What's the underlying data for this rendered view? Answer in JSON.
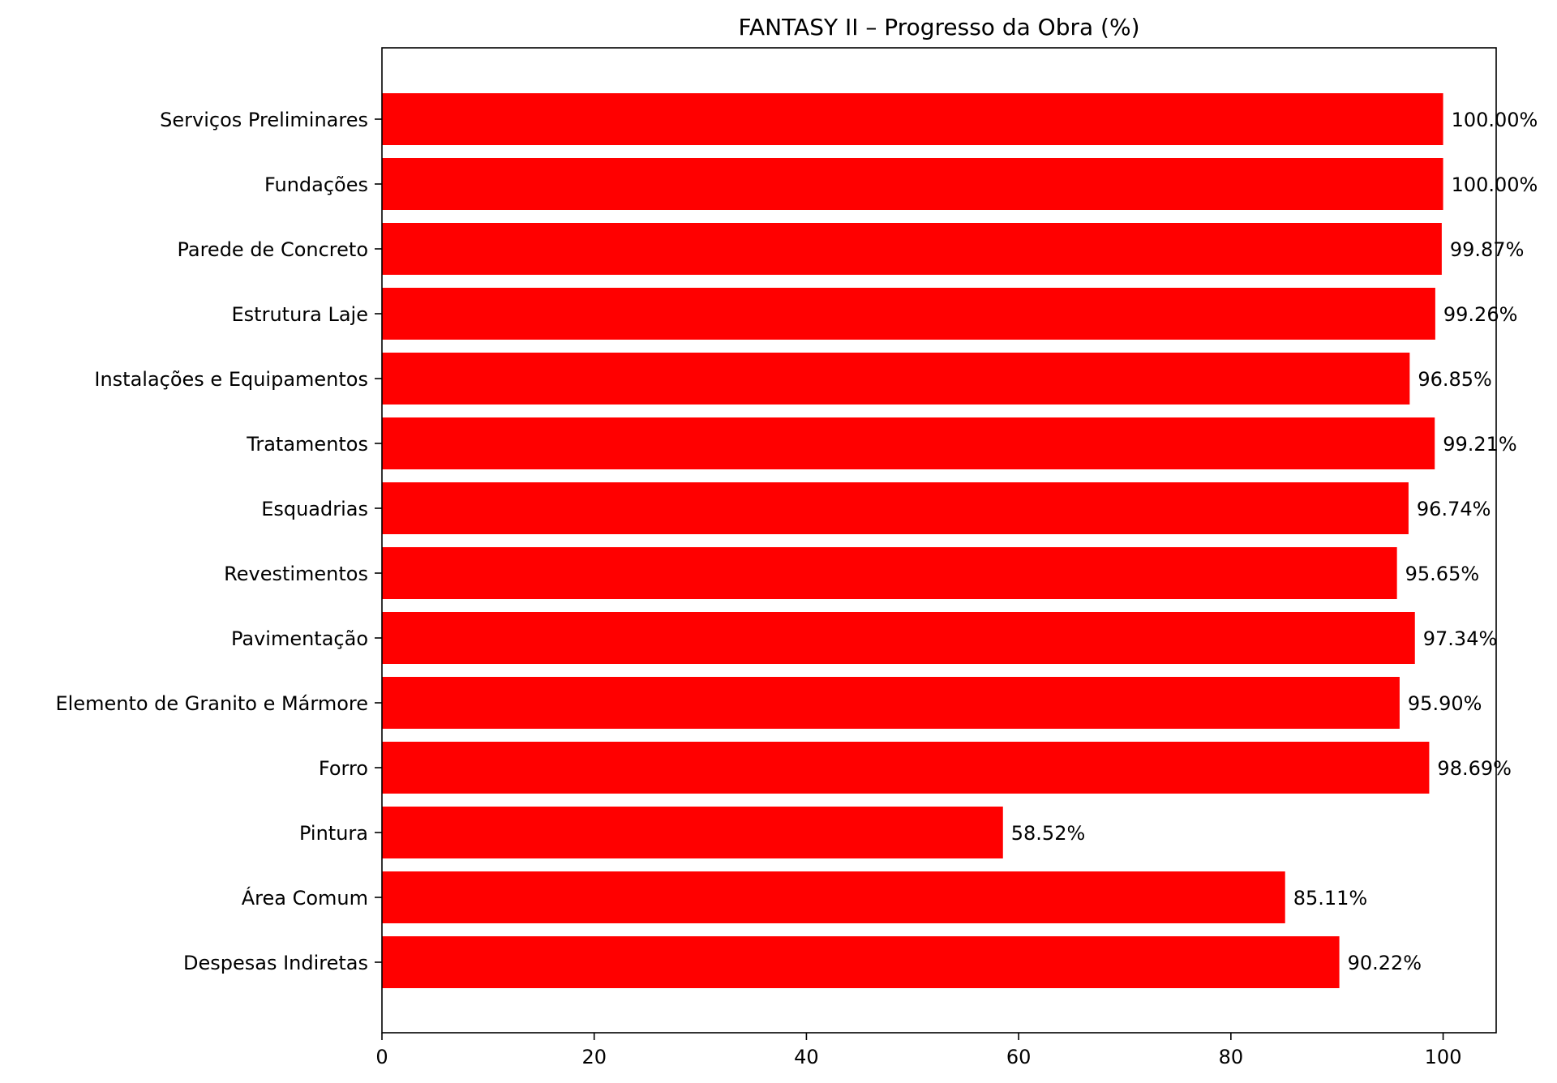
{
  "chart_data": {
    "type": "bar",
    "orientation": "horizontal",
    "title": "FANTASY II – Progresso da Obra (%)",
    "xlabel": "",
    "ylabel": "",
    "xlim": [
      0,
      105
    ],
    "xticks": [
      0,
      20,
      40,
      60,
      80,
      100
    ],
    "grid": false,
    "bar_color": "#ff0000",
    "categories": [
      "Serviços Preliminares",
      "Fundações",
      "Parede de Concreto",
      "Estrutura Laje",
      "Instalações e Equipamentos",
      "Tratamentos",
      "Esquadrias",
      "Revestimentos",
      "Pavimentação",
      "Elemento de Granito e Mármore",
      "Forro",
      "Pintura",
      "Área Comum",
      "Despesas Indiretas"
    ],
    "values": [
      100.0,
      100.0,
      99.87,
      99.26,
      96.85,
      99.21,
      96.74,
      95.65,
      97.34,
      95.9,
      98.69,
      58.52,
      85.11,
      90.22
    ],
    "data_labels": [
      "100.00%",
      "100.00%",
      "99.87%",
      "99.26%",
      "96.85%",
      "99.21%",
      "96.74%",
      "95.65%",
      "97.34%",
      "95.90%",
      "98.69%",
      "58.52%",
      "85.11%",
      "90.22%"
    ]
  }
}
